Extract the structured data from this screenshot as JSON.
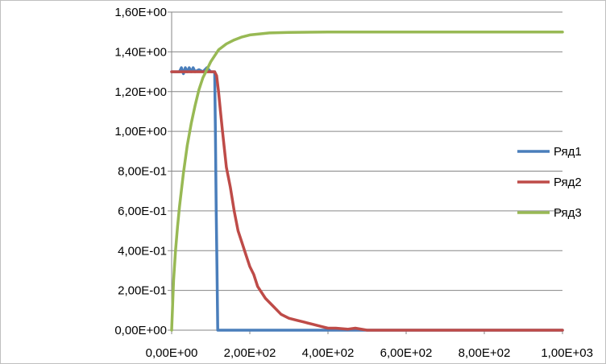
{
  "chart_data": {
    "type": "line",
    "title": "",
    "xlabel": "",
    "ylabel": "",
    "xlim": [
      0,
      1000
    ],
    "ylim": [
      0,
      1.6
    ],
    "grid": "horizontal",
    "legend": "right",
    "x_ticks": [
      {
        "value": 0,
        "label": "0,00E+00"
      },
      {
        "value": 200,
        "label": "2,00E+02"
      },
      {
        "value": 400,
        "label": "4,00E+02"
      },
      {
        "value": 600,
        "label": "6,00E+02"
      },
      {
        "value": 800,
        "label": "8,00E+02"
      },
      {
        "value": 1000,
        "label": "1,00E+03"
      }
    ],
    "y_ticks": [
      {
        "value": 0,
        "label": "0,00E+00"
      },
      {
        "value": 0.2,
        "label": "2,00E-01"
      },
      {
        "value": 0.4,
        "label": "4,00E-01"
      },
      {
        "value": 0.6,
        "label": "6,00E-01"
      },
      {
        "value": 0.8,
        "label": "8,00E-01"
      },
      {
        "value": 1.0,
        "label": "1,00E+00"
      },
      {
        "value": 1.2,
        "label": "1,20E+00"
      },
      {
        "value": 1.4,
        "label": "1,40E+00"
      },
      {
        "value": 1.6,
        "label": "1,60E+00"
      }
    ],
    "series": [
      {
        "name": "Ряд1",
        "color": "#4a7ebb",
        "x": [
          0,
          20,
          25,
          30,
          35,
          40,
          45,
          50,
          55,
          60,
          70,
          80,
          90,
          100,
          108,
          110,
          112,
          114,
          116,
          118,
          120,
          130,
          200,
          400,
          600,
          800,
          1000
        ],
        "y": [
          1.3,
          1.3,
          1.32,
          1.29,
          1.32,
          1.3,
          1.32,
          1.3,
          1.32,
          1.3,
          1.31,
          1.3,
          1.32,
          1.3,
          1.3,
          1.3,
          1.0,
          0.6,
          0.3,
          0.0,
          0.0,
          0.0,
          0.0,
          0.0,
          0.0,
          0.0,
          0.0
        ]
      },
      {
        "name": "Ряд2",
        "color": "#be4b48",
        "x": [
          0,
          100,
          110,
          115,
          120,
          125,
          130,
          140,
          150,
          160,
          170,
          180,
          190,
          200,
          210,
          220,
          240,
          260,
          280,
          300,
          320,
          340,
          360,
          380,
          400,
          420,
          450,
          470,
          500,
          600,
          700,
          800,
          900,
          1000
        ],
        "y": [
          1.3,
          1.3,
          1.3,
          1.28,
          1.2,
          1.1,
          1.0,
          0.82,
          0.72,
          0.6,
          0.5,
          0.44,
          0.38,
          0.32,
          0.28,
          0.22,
          0.16,
          0.12,
          0.08,
          0.06,
          0.05,
          0.04,
          0.03,
          0.02,
          0.01,
          0.01,
          0.005,
          0.01,
          0.0,
          0.0,
          0.0,
          0.0,
          0.0,
          0.0
        ]
      },
      {
        "name": "Ряд3",
        "color": "#98b954",
        "x": [
          0,
          5,
          10,
          15,
          20,
          30,
          40,
          50,
          60,
          70,
          80,
          90,
          100,
          120,
          140,
          160,
          180,
          200,
          250,
          300,
          400,
          500,
          600,
          800,
          1000
        ],
        "y": [
          0,
          0.25,
          0.4,
          0.52,
          0.62,
          0.79,
          0.93,
          1.04,
          1.13,
          1.21,
          1.27,
          1.31,
          1.35,
          1.41,
          1.44,
          1.46,
          1.475,
          1.485,
          1.495,
          1.498,
          1.5,
          1.5,
          1.5,
          1.5,
          1.5
        ]
      }
    ]
  }
}
